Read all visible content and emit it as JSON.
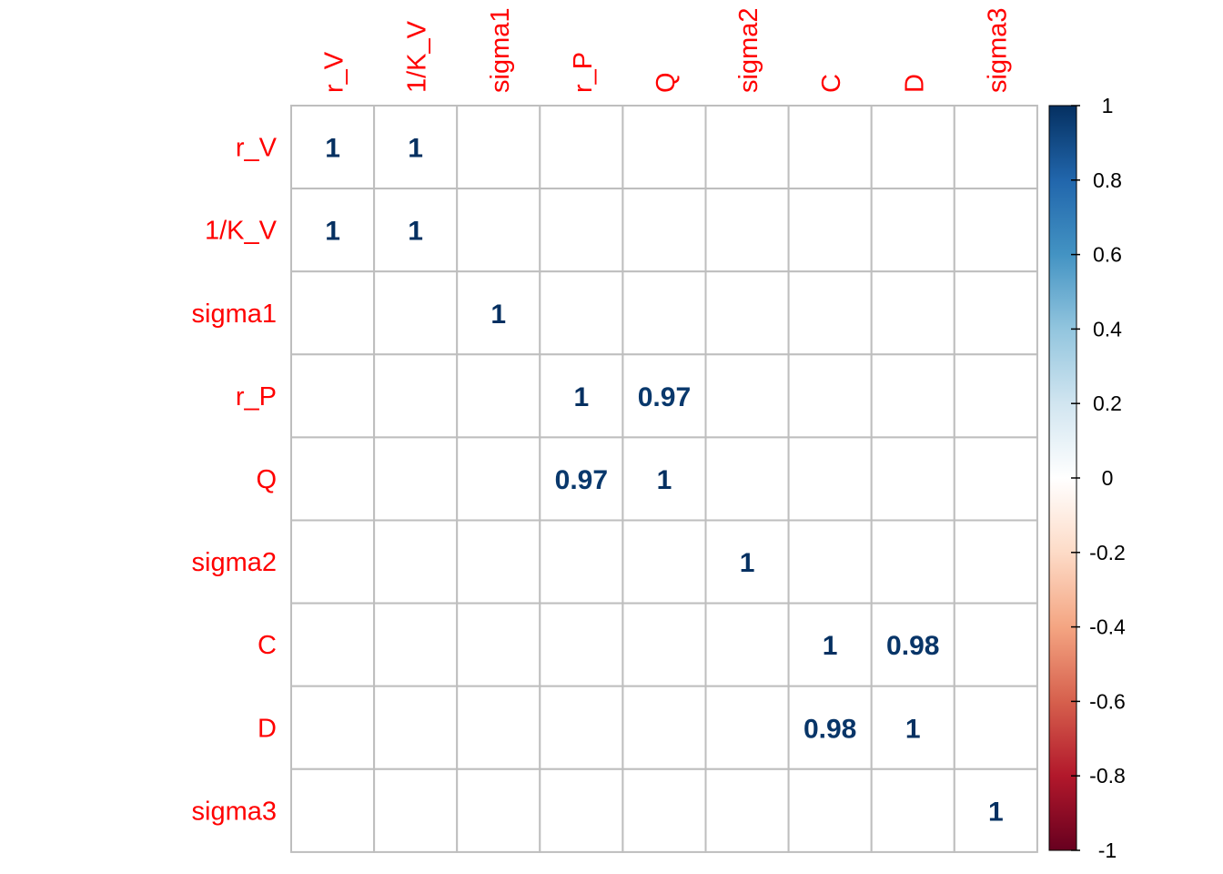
{
  "chart_data": {
    "type": "heatmap",
    "title": "",
    "variables": [
      "r_V",
      "1/K_V",
      "sigma1",
      "r_P",
      "Q",
      "sigma2",
      "C",
      "D",
      "sigma3"
    ],
    "values": [
      [
        1,
        1,
        0,
        0,
        0,
        0,
        0,
        0,
        0
      ],
      [
        1,
        1,
        0,
        0,
        0,
        0,
        0,
        0,
        0
      ],
      [
        0,
        0,
        1,
        0,
        0,
        0,
        0,
        0,
        0
      ],
      [
        0,
        0,
        0,
        1,
        0.97,
        0,
        0,
        0,
        0
      ],
      [
        0,
        0,
        0,
        0.97,
        1,
        0,
        0,
        0,
        0
      ],
      [
        0,
        0,
        0,
        0,
        0,
        1,
        0,
        0,
        0
      ],
      [
        0,
        0,
        0,
        0,
        0,
        0,
        1,
        0.98,
        0
      ],
      [
        0,
        0,
        0,
        0,
        0,
        0,
        0.98,
        1,
        0
      ],
      [
        0,
        0,
        0,
        0,
        0,
        0,
        0,
        0,
        1
      ]
    ],
    "color_scale": {
      "range": [
        -1,
        1
      ],
      "ticks": [
        "1",
        "0.8",
        "0.6",
        "0.4",
        "0.2",
        "0",
        "-0.2",
        "-0.4",
        "-0.6",
        "-0.8",
        "-1"
      ],
      "colors": [
        "#67001F",
        "#B2182B",
        "#D6604D",
        "#F4A582",
        "#FDDBC7",
        "#FFFFFF",
        "#D1E5F0",
        "#92C5DE",
        "#4393C3",
        "#2166AC",
        "#053061"
      ]
    },
    "label_color": "#FF0000",
    "grid_color": "#BEBEBE",
    "legend_position": "right"
  }
}
